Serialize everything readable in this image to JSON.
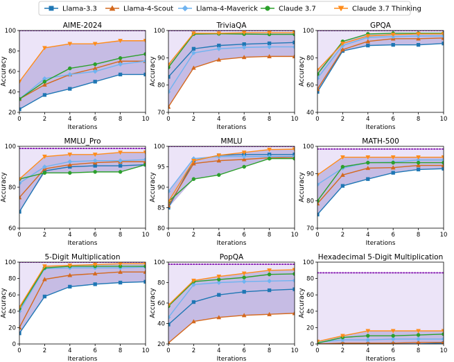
{
  "legend": {
    "items": [
      {
        "name": "Llama-3.3",
        "color": "#1f77b4",
        "marker": "square"
      },
      {
        "name": "Llama-4-Scout",
        "color": "#d4691e",
        "marker": "triangle-up"
      },
      {
        "name": "Llama-4-Maverick",
        "color": "#6fb3f0",
        "marker": "diamond"
      },
      {
        "name": "Claude 3.7",
        "color": "#2ca02c",
        "marker": "circle"
      },
      {
        "name": "Claude 3.7 Thinking",
        "color": "#ff8c1a",
        "marker": "triangle-down"
      }
    ]
  },
  "chart_data": [
    {
      "type": "line",
      "title": "AIME-2024",
      "xlabel": "Iterations",
      "ylabel": "Accuracy",
      "x": [
        0,
        2,
        4,
        6,
        8,
        10
      ],
      "ylim": [
        20,
        100
      ],
      "yticks": [
        20,
        40,
        60,
        80,
        100
      ],
      "xticks": [
        0,
        2,
        4,
        6,
        8,
        10
      ],
      "reference_line": 100,
      "series": [
        {
          "name": "Llama-3.3",
          "values": [
            23,
            37,
            43,
            50,
            57,
            57
          ]
        },
        {
          "name": "Llama-4-Scout",
          "values": [
            33,
            47,
            57,
            63,
            70,
            70
          ]
        },
        {
          "name": "Llama-4-Maverick",
          "values": [
            33,
            53,
            57,
            60,
            67,
            70
          ]
        },
        {
          "name": "Claude 3.7",
          "values": [
            33,
            50,
            63,
            67,
            73,
            77
          ]
        },
        {
          "name": "Claude 3.7 Thinking",
          "values": [
            50,
            83,
            87,
            87,
            90,
            90
          ]
        }
      ]
    },
    {
      "type": "line",
      "title": "TriviaQA",
      "xlabel": "Iterations",
      "ylabel": "Accuracy",
      "x": [
        0,
        2,
        4,
        6,
        8,
        10
      ],
      "ylim": [
        70,
        100
      ],
      "yticks": [
        70,
        80,
        90,
        100
      ],
      "xticks": [
        0,
        2,
        4,
        6,
        8,
        10
      ],
      "reference_line": 100,
      "series": [
        {
          "name": "Llama-3.3",
          "values": [
            83,
            93.3,
            94.5,
            95,
            95.3,
            95.6
          ]
        },
        {
          "name": "Llama-4-Scout",
          "values": [
            72,
            86.3,
            89.3,
            90.2,
            90.5,
            90.5
          ]
        },
        {
          "name": "Llama-4-Maverick",
          "values": [
            77.5,
            91.8,
            93.3,
            93.8,
            94,
            94
          ]
        },
        {
          "name": "Claude 3.7",
          "values": [
            86.5,
            98.7,
            98.8,
            98.7,
            98.6,
            98.6
          ]
        },
        {
          "name": "Claude 3.7 Thinking",
          "values": [
            87.5,
            99,
            99,
            99.2,
            99.2,
            99.2
          ]
        }
      ]
    },
    {
      "type": "line",
      "title": "GPQA",
      "xlabel": "Iterations",
      "ylabel": "Accuracy",
      "x": [
        0,
        2,
        4,
        6,
        8,
        10
      ],
      "ylim": [
        40,
        100
      ],
      "yticks": [
        40,
        60,
        80,
        100
      ],
      "xticks": [
        0,
        2,
        4,
        6,
        8,
        10
      ],
      "reference_line": 100,
      "series": [
        {
          "name": "Llama-3.3",
          "values": [
            55,
            85,
            89,
            89.5,
            89.5,
            90.5
          ]
        },
        {
          "name": "Llama-4-Scout",
          "values": [
            57,
            86,
            92,
            94,
            94,
            94.5
          ]
        },
        {
          "name": "Llama-4-Maverick",
          "values": [
            65,
            89,
            95,
            95.5,
            96,
            96
          ]
        },
        {
          "name": "Claude 3.7",
          "values": [
            68,
            92,
            97.5,
            98,
            98,
            98
          ]
        },
        {
          "name": "Claude 3.7 Thinking",
          "values": [
            71,
            90.5,
            96,
            97,
            97.5,
            97.5
          ]
        }
      ]
    },
    {
      "type": "line",
      "title": "MMLU_Pro",
      "xlabel": "Iterations",
      "ylabel": "Accuracy",
      "x": [
        0,
        2,
        4,
        6,
        8,
        10
      ],
      "ylim": [
        60,
        100
      ],
      "yticks": [
        60,
        80,
        100
      ],
      "xticks": [
        0,
        2,
        4,
        6,
        8,
        10
      ],
      "reference_line": 99,
      "series": [
        {
          "name": "Llama-3.3",
          "values": [
            68,
            88,
            90,
            90.5,
            90.5,
            91
          ]
        },
        {
          "name": "Llama-4-Scout",
          "values": [
            75,
            89,
            91,
            92,
            92.5,
            92.5
          ]
        },
        {
          "name": "Llama-4-Maverick",
          "values": [
            82,
            90,
            92.5,
            93,
            93,
            93.5
          ]
        },
        {
          "name": "Claude 3.7",
          "values": [
            84,
            87,
            87,
            87.5,
            87.5,
            91
          ]
        },
        {
          "name": "Claude 3.7 Thinking",
          "values": [
            84,
            95,
            96,
            96,
            97,
            97
          ]
        }
      ]
    },
    {
      "type": "line",
      "title": "MMLU",
      "xlabel": "Iterations",
      "ylabel": "Accuracy",
      "x": [
        0,
        2,
        4,
        6,
        8,
        10
      ],
      "ylim": [
        80,
        100
      ],
      "yticks": [
        80,
        85,
        90,
        95,
        100
      ],
      "xticks": [
        0,
        2,
        4,
        6,
        8,
        10
      ],
      "reference_line": 100,
      "series": [
        {
          "name": "Llama-3.3",
          "values": [
            85,
            96.5,
            97.8,
            98,
            98,
            98
          ]
        },
        {
          "name": "Llama-4-Scout",
          "values": [
            85.5,
            95.8,
            96.5,
            96.8,
            97.2,
            97.3
          ]
        },
        {
          "name": "Llama-4-Maverick",
          "values": [
            89,
            97,
            97.5,
            97.5,
            97.5,
            97.5
          ]
        },
        {
          "name": "Claude 3.7",
          "values": [
            86.5,
            92,
            93,
            95,
            97,
            97
          ]
        },
        {
          "name": "Claude 3.7 Thinking",
          "values": [
            86.5,
            96.5,
            97.8,
            98.5,
            99.2,
            99.3
          ]
        }
      ]
    },
    {
      "type": "line",
      "title": "MATH-500",
      "xlabel": "Iterations",
      "ylabel": "Accuracy",
      "x": [
        0,
        2,
        4,
        6,
        8,
        10
      ],
      "ylim": [
        70,
        100
      ],
      "yticks": [
        70,
        80,
        90,
        100
      ],
      "xticks": [
        0,
        2,
        4,
        6,
        8,
        10
      ],
      "reference_line": 99,
      "series": [
        {
          "name": "Llama-3.3",
          "values": [
            75,
            85.5,
            88,
            90.3,
            91.5,
            91.8
          ]
        },
        {
          "name": "Llama-4-Scout",
          "values": [
            79,
            89.5,
            92,
            92.2,
            93,
            93
          ]
        },
        {
          "name": "Llama-4-Maverick",
          "values": [
            86,
            92,
            94,
            94.2,
            95,
            95
          ]
        },
        {
          "name": "Claude 3.7",
          "values": [
            80,
            92.5,
            94,
            94,
            94,
            94
          ]
        },
        {
          "name": "Claude 3.7 Thinking",
          "values": [
            89.5,
            96,
            96,
            96,
            96,
            96
          ]
        }
      ]
    },
    {
      "type": "line",
      "title": "5-Digit Multiplication",
      "xlabel": "Iterations",
      "ylabel": "Accuracy",
      "x": [
        0,
        2,
        4,
        6,
        8,
        10
      ],
      "ylim": [
        0,
        100
      ],
      "yticks": [
        0,
        20,
        40,
        60,
        80,
        100
      ],
      "xticks": [
        0,
        2,
        4,
        6,
        8,
        10
      ],
      "reference_line": 100,
      "series": [
        {
          "name": "Llama-3.3",
          "values": [
            13,
            58,
            70,
            73,
            75,
            76
          ]
        },
        {
          "name": "Llama-4-Scout",
          "values": [
            20,
            79,
            84,
            86,
            88,
            88
          ]
        },
        {
          "name": "Llama-4-Maverick",
          "values": [
            40,
            92,
            93,
            93,
            93,
            94
          ]
        },
        {
          "name": "Claude 3.7",
          "values": [
            43,
            93,
            95,
            95,
            95,
            95
          ]
        },
        {
          "name": "Claude 3.7 Thinking",
          "values": [
            45,
            95,
            96,
            97,
            98,
            98
          ]
        }
      ]
    },
    {
      "type": "line",
      "title": "PopQA",
      "xlabel": "Iterations",
      "ylabel": "Accuracy",
      "x": [
        0,
        2,
        4,
        6,
        8,
        10
      ],
      "ylim": [
        20,
        100
      ],
      "yticks": [
        20,
        40,
        60,
        80,
        100
      ],
      "xticks": [
        0,
        2,
        4,
        6,
        8,
        10
      ],
      "reference_line": 98,
      "series": [
        {
          "name": "Llama-3.3",
          "values": [
            39,
            61,
            68,
            71,
            72.5,
            73.5
          ]
        },
        {
          "name": "Llama-4-Scout",
          "values": [
            21,
            42,
            46,
            48,
            49,
            50
          ]
        },
        {
          "name": "Llama-4-Maverick",
          "values": [
            46,
            78,
            80,
            81,
            81.5,
            82
          ]
        },
        {
          "name": "Claude 3.7",
          "values": [
            57,
            81,
            83,
            85,
            88,
            88.5
          ]
        },
        {
          "name": "Claude 3.7 Thinking",
          "values": [
            58,
            82,
            86,
            89,
            92,
            92.5
          ]
        }
      ]
    },
    {
      "type": "line",
      "title": "Hexadecimal 5-Digit Multiplication",
      "xlabel": "Iterations",
      "ylabel": "Accuracy",
      "x": [
        0,
        2,
        4,
        6,
        8,
        10
      ],
      "ylim": [
        0,
        100
      ],
      "yticks": [
        0,
        20,
        40,
        60,
        80,
        100
      ],
      "xticks": [
        0,
        2,
        4,
        6,
        8,
        10
      ],
      "reference_line": 87,
      "series": [
        {
          "name": "Llama-3.3",
          "values": [
            0,
            0,
            0,
            0,
            0,
            1
          ]
        },
        {
          "name": "Llama-4-Scout",
          "values": [
            0,
            1,
            1,
            1,
            2,
            2
          ]
        },
        {
          "name": "Llama-4-Maverick",
          "values": [
            2,
            5,
            5,
            6,
            6,
            6
          ]
        },
        {
          "name": "Claude 3.7",
          "values": [
            1,
            8,
            10,
            10,
            11,
            12
          ]
        },
        {
          "name": "Claude 3.7 Thinking",
          "values": [
            3,
            10,
            16,
            16,
            16,
            16
          ]
        }
      ]
    }
  ]
}
